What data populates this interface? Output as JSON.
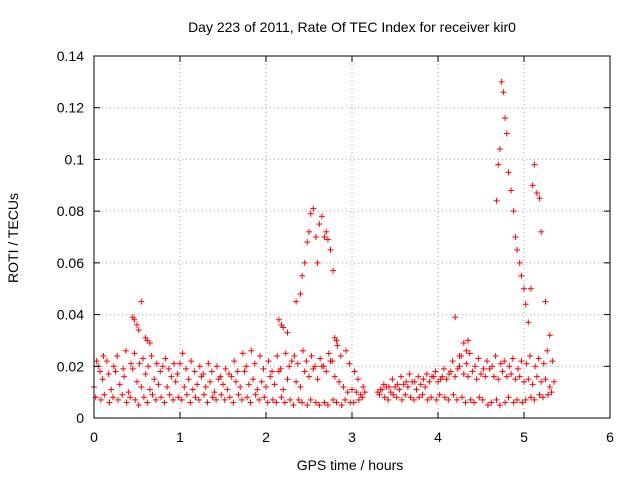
{
  "chart_data": {
    "type": "scatter",
    "title": "Day 223 of 2011, Rate Of TEC Index for receiver kir0",
    "xlabel": "GPS time / hours",
    "ylabel": "ROTI / TECUs",
    "xlim": [
      0,
      6
    ],
    "ylim": [
      0,
      0.14
    ],
    "x_ticks": [
      0,
      1,
      2,
      3,
      4,
      5,
      6
    ],
    "x_tick_labels": [
      "0",
      "1",
      "2",
      "3",
      "4",
      "5",
      "6"
    ],
    "y_ticks": [
      0,
      0.02,
      0.04,
      0.06,
      0.08,
      0.1,
      0.12,
      0.14
    ],
    "y_tick_labels": [
      "0",
      "0.02",
      "0.04",
      "0.06",
      "0.08",
      "0.1",
      "0.12",
      "0.14"
    ],
    "grid": true,
    "marker": "+",
    "color": "#ff0000",
    "series": [
      {
        "name": "ROTI",
        "x": [
          0.0,
          0.05,
          0.1,
          0.15,
          0.2,
          0.25,
          0.3,
          0.35,
          0.4,
          0.45,
          0.5,
          0.55,
          0.6,
          0.65,
          0.7,
          0.75,
          0.8,
          0.85,
          0.9,
          0.95,
          1.0,
          1.05,
          1.1,
          1.15,
          1.2,
          1.25,
          1.3,
          1.35,
          1.4,
          1.45,
          1.5,
          1.55,
          1.6,
          1.65,
          1.7,
          1.75,
          1.8,
          1.85,
          1.9,
          1.95,
          2.0,
          2.05,
          2.1,
          2.15,
          2.2,
          2.25,
          2.3,
          2.35,
          2.4,
          2.45,
          2.5,
          2.55,
          2.6,
          2.65,
          2.7,
          2.75,
          2.8,
          2.85,
          2.9,
          2.95,
          3.0,
          3.05,
          3.1,
          3.15,
          3.3,
          3.35,
          3.4,
          3.45,
          3.5,
          3.55,
          3.6,
          3.65,
          3.7,
          3.75,
          3.8,
          3.85,
          3.9,
          3.95,
          4.0,
          4.05,
          4.1,
          4.15,
          4.2,
          4.25,
          4.3,
          4.35,
          4.4,
          4.45,
          4.5,
          4.55,
          4.6,
          4.65,
          4.7,
          4.75,
          4.8,
          4.85,
          4.9,
          4.95,
          5.0,
          5.05,
          5.1,
          5.15,
          5.2,
          5.25,
          5.3,
          5.35,
          0.02,
          0.08,
          0.12,
          0.18,
          0.22,
          0.28,
          0.33,
          0.38,
          0.42,
          0.48,
          0.52,
          0.58,
          0.62,
          0.68,
          0.72,
          0.78,
          0.82,
          0.88,
          0.92,
          0.98,
          1.02,
          1.08,
          1.12,
          1.18,
          1.22,
          1.28,
          1.32,
          1.38,
          1.42,
          1.48,
          1.52,
          1.58,
          1.62,
          1.68,
          1.72,
          1.78,
          1.82,
          1.88,
          1.92,
          1.98,
          2.02,
          2.08,
          2.12,
          2.18,
          2.22,
          2.28,
          2.32,
          2.38,
          2.42,
          2.48,
          2.52,
          2.58,
          2.62,
          2.68,
          2.72,
          2.78,
          2.82,
          2.88,
          2.92,
          2.98,
          3.02,
          3.08,
          3.12,
          3.32,
          3.38,
          3.42,
          3.48,
          3.52,
          3.58,
          3.62,
          3.68,
          3.72,
          3.78,
          3.82,
          3.88,
          3.92,
          3.98,
          4.02,
          4.08,
          4.12,
          4.18,
          4.22,
          4.28,
          4.32,
          4.38,
          4.42,
          4.48,
          4.52,
          4.58,
          4.62,
          4.68,
          4.72,
          4.78,
          4.82,
          4.88,
          4.92,
          4.98,
          5.02,
          5.08,
          5.12,
          5.18,
          5.22,
          5.28,
          5.32,
          0.03,
          0.07,
          0.11,
          0.17,
          0.23,
          0.27,
          0.34,
          0.37,
          0.43,
          0.47,
          0.53,
          0.57,
          0.63,
          0.67,
          0.73,
          0.77,
          0.83,
          0.87,
          0.93,
          0.97,
          1.03,
          1.07,
          1.13,
          1.17,
          1.23,
          1.27,
          1.33,
          1.37,
          1.43,
          1.47,
          1.53,
          1.57,
          1.63,
          1.67,
          1.73,
          1.77,
          1.83,
          1.87,
          1.93,
          1.97,
          2.03,
          2.07,
          2.13,
          2.17,
          2.23,
          2.27,
          2.33,
          2.37,
          2.43,
          2.47,
          2.53,
          2.57,
          2.63,
          2.67,
          2.73,
          2.77,
          2.83,
          2.87,
          2.93,
          2.97,
          3.03,
          3.07,
          3.13,
          3.33,
          3.37,
          3.43,
          3.47,
          3.53,
          3.57,
          3.63,
          3.67,
          3.73,
          3.77,
          3.83,
          3.87,
          3.93,
          3.97,
          4.03,
          4.07,
          4.13,
          4.17,
          4.23,
          4.27,
          4.33,
          4.37,
          4.43,
          4.47,
          4.53,
          4.57,
          4.63,
          4.67,
          4.73,
          4.77,
          4.83,
          4.87,
          4.93,
          4.97,
          5.03,
          5.07,
          5.13,
          5.17,
          5.23,
          5.27,
          5.33,
          0.45,
          0.47,
          0.5,
          0.52,
          0.55,
          0.6,
          0.62,
          0.65,
          2.15,
          2.18,
          2.2,
          2.25,
          2.35,
          2.4,
          2.42,
          2.45,
          2.48,
          2.5,
          2.52,
          2.55,
          2.58,
          2.6,
          2.62,
          2.65,
          2.68,
          2.7,
          2.72,
          2.75,
          2.78,
          2.8,
          2.82,
          4.2,
          4.25,
          4.3,
          4.33,
          4.35,
          4.68,
          4.7,
          4.72,
          4.74,
          4.76,
          4.78,
          4.8,
          4.82,
          4.85,
          4.88,
          4.9,
          4.92,
          4.95,
          4.97,
          5.0,
          5.02,
          5.05,
          5.08,
          5.1,
          5.12,
          5.15,
          5.18,
          5.2,
          5.25,
          5.3
        ],
        "y": [
          0.012,
          0.02,
          0.015,
          0.022,
          0.011,
          0.018,
          0.013,
          0.016,
          0.01,
          0.019,
          0.014,
          0.012,
          0.017,
          0.011,
          0.015,
          0.013,
          0.02,
          0.012,
          0.016,
          0.014,
          0.021,
          0.012,
          0.015,
          0.011,
          0.013,
          0.016,
          0.012,
          0.014,
          0.01,
          0.015,
          0.013,
          0.011,
          0.016,
          0.014,
          0.012,
          0.018,
          0.013,
          0.015,
          0.011,
          0.014,
          0.012,
          0.016,
          0.013,
          0.018,
          0.011,
          0.015,
          0.022,
          0.014,
          0.012,
          0.018,
          0.016,
          0.019,
          0.015,
          0.02,
          0.018,
          0.022,
          0.016,
          0.014,
          0.012,
          0.01,
          0.011,
          0.01,
          0.009,
          0.01,
          0.01,
          0.011,
          0.012,
          0.01,
          0.012,
          0.011,
          0.013,
          0.012,
          0.014,
          0.011,
          0.013,
          0.012,
          0.014,
          0.016,
          0.014,
          0.016,
          0.015,
          0.018,
          0.016,
          0.02,
          0.017,
          0.016,
          0.018,
          0.015,
          0.017,
          0.016,
          0.019,
          0.016,
          0.015,
          0.018,
          0.016,
          0.017,
          0.015,
          0.016,
          0.014,
          0.015,
          0.013,
          0.016,
          0.014,
          0.015,
          0.012,
          0.014,
          0.008,
          0.007,
          0.009,
          0.006,
          0.008,
          0.007,
          0.009,
          0.006,
          0.008,
          0.007,
          0.005,
          0.008,
          0.006,
          0.009,
          0.007,
          0.008,
          0.006,
          0.009,
          0.007,
          0.008,
          0.007,
          0.009,
          0.006,
          0.008,
          0.007,
          0.009,
          0.006,
          0.008,
          0.007,
          0.009,
          0.007,
          0.008,
          0.006,
          0.009,
          0.007,
          0.008,
          0.006,
          0.009,
          0.007,
          0.008,
          0.006,
          0.007,
          0.006,
          0.008,
          0.006,
          0.007,
          0.005,
          0.007,
          0.006,
          0.005,
          0.007,
          0.006,
          0.005,
          0.006,
          0.005,
          0.007,
          0.006,
          0.005,
          0.007,
          0.006,
          0.006,
          0.007,
          0.008,
          0.009,
          0.008,
          0.007,
          0.009,
          0.008,
          0.007,
          0.009,
          0.008,
          0.007,
          0.008,
          0.009,
          0.007,
          0.008,
          0.007,
          0.009,
          0.008,
          0.007,
          0.009,
          0.007,
          0.008,
          0.006,
          0.007,
          0.006,
          0.008,
          0.007,
          0.005,
          0.006,
          0.007,
          0.005,
          0.006,
          0.008,
          0.006,
          0.007,
          0.006,
          0.007,
          0.008,
          0.007,
          0.009,
          0.008,
          0.009,
          0.01,
          0.022,
          0.018,
          0.024,
          0.017,
          0.02,
          0.024,
          0.019,
          0.026,
          0.021,
          0.025,
          0.021,
          0.023,
          0.02,
          0.024,
          0.021,
          0.018,
          0.023,
          0.019,
          0.021,
          0.017,
          0.025,
          0.019,
          0.022,
          0.018,
          0.02,
          0.017,
          0.021,
          0.018,
          0.02,
          0.016,
          0.019,
          0.017,
          0.022,
          0.018,
          0.025,
          0.02,
          0.026,
          0.021,
          0.024,
          0.019,
          0.022,
          0.018,
          0.024,
          0.019,
          0.025,
          0.02,
          0.024,
          0.021,
          0.026,
          0.022,
          0.024,
          0.02,
          0.023,
          0.02,
          0.025,
          0.022,
          0.028,
          0.024,
          0.026,
          0.021,
          0.018,
          0.015,
          0.012,
          0.011,
          0.013,
          0.012,
          0.015,
          0.013,
          0.016,
          0.014,
          0.017,
          0.014,
          0.016,
          0.015,
          0.017,
          0.016,
          0.018,
          0.015,
          0.019,
          0.017,
          0.022,
          0.019,
          0.024,
          0.021,
          0.025,
          0.02,
          0.023,
          0.019,
          0.022,
          0.02,
          0.024,
          0.021,
          0.022,
          0.02,
          0.023,
          0.019,
          0.022,
          0.021,
          0.024,
          0.02,
          0.023,
          0.021,
          0.026,
          0.022,
          0.039,
          0.038,
          0.036,
          0.034,
          0.045,
          0.031,
          0.03,
          0.029,
          0.038,
          0.036,
          0.035,
          0.033,
          0.045,
          0.048,
          0.055,
          0.06,
          0.068,
          0.072,
          0.079,
          0.081,
          0.07,
          0.06,
          0.075,
          0.078,
          0.07,
          0.072,
          0.069,
          0.065,
          0.057,
          0.031,
          0.03,
          0.039,
          0.024,
          0.029,
          0.026,
          0.03,
          0.084,
          0.098,
          0.104,
          0.13,
          0.126,
          0.116,
          0.11,
          0.095,
          0.088,
          0.08,
          0.07,
          0.065,
          0.06,
          0.055,
          0.05,
          0.044,
          0.037,
          0.05,
          0.09,
          0.098,
          0.087,
          0.085,
          0.072,
          0.045,
          0.032
        ]
      }
    ]
  }
}
